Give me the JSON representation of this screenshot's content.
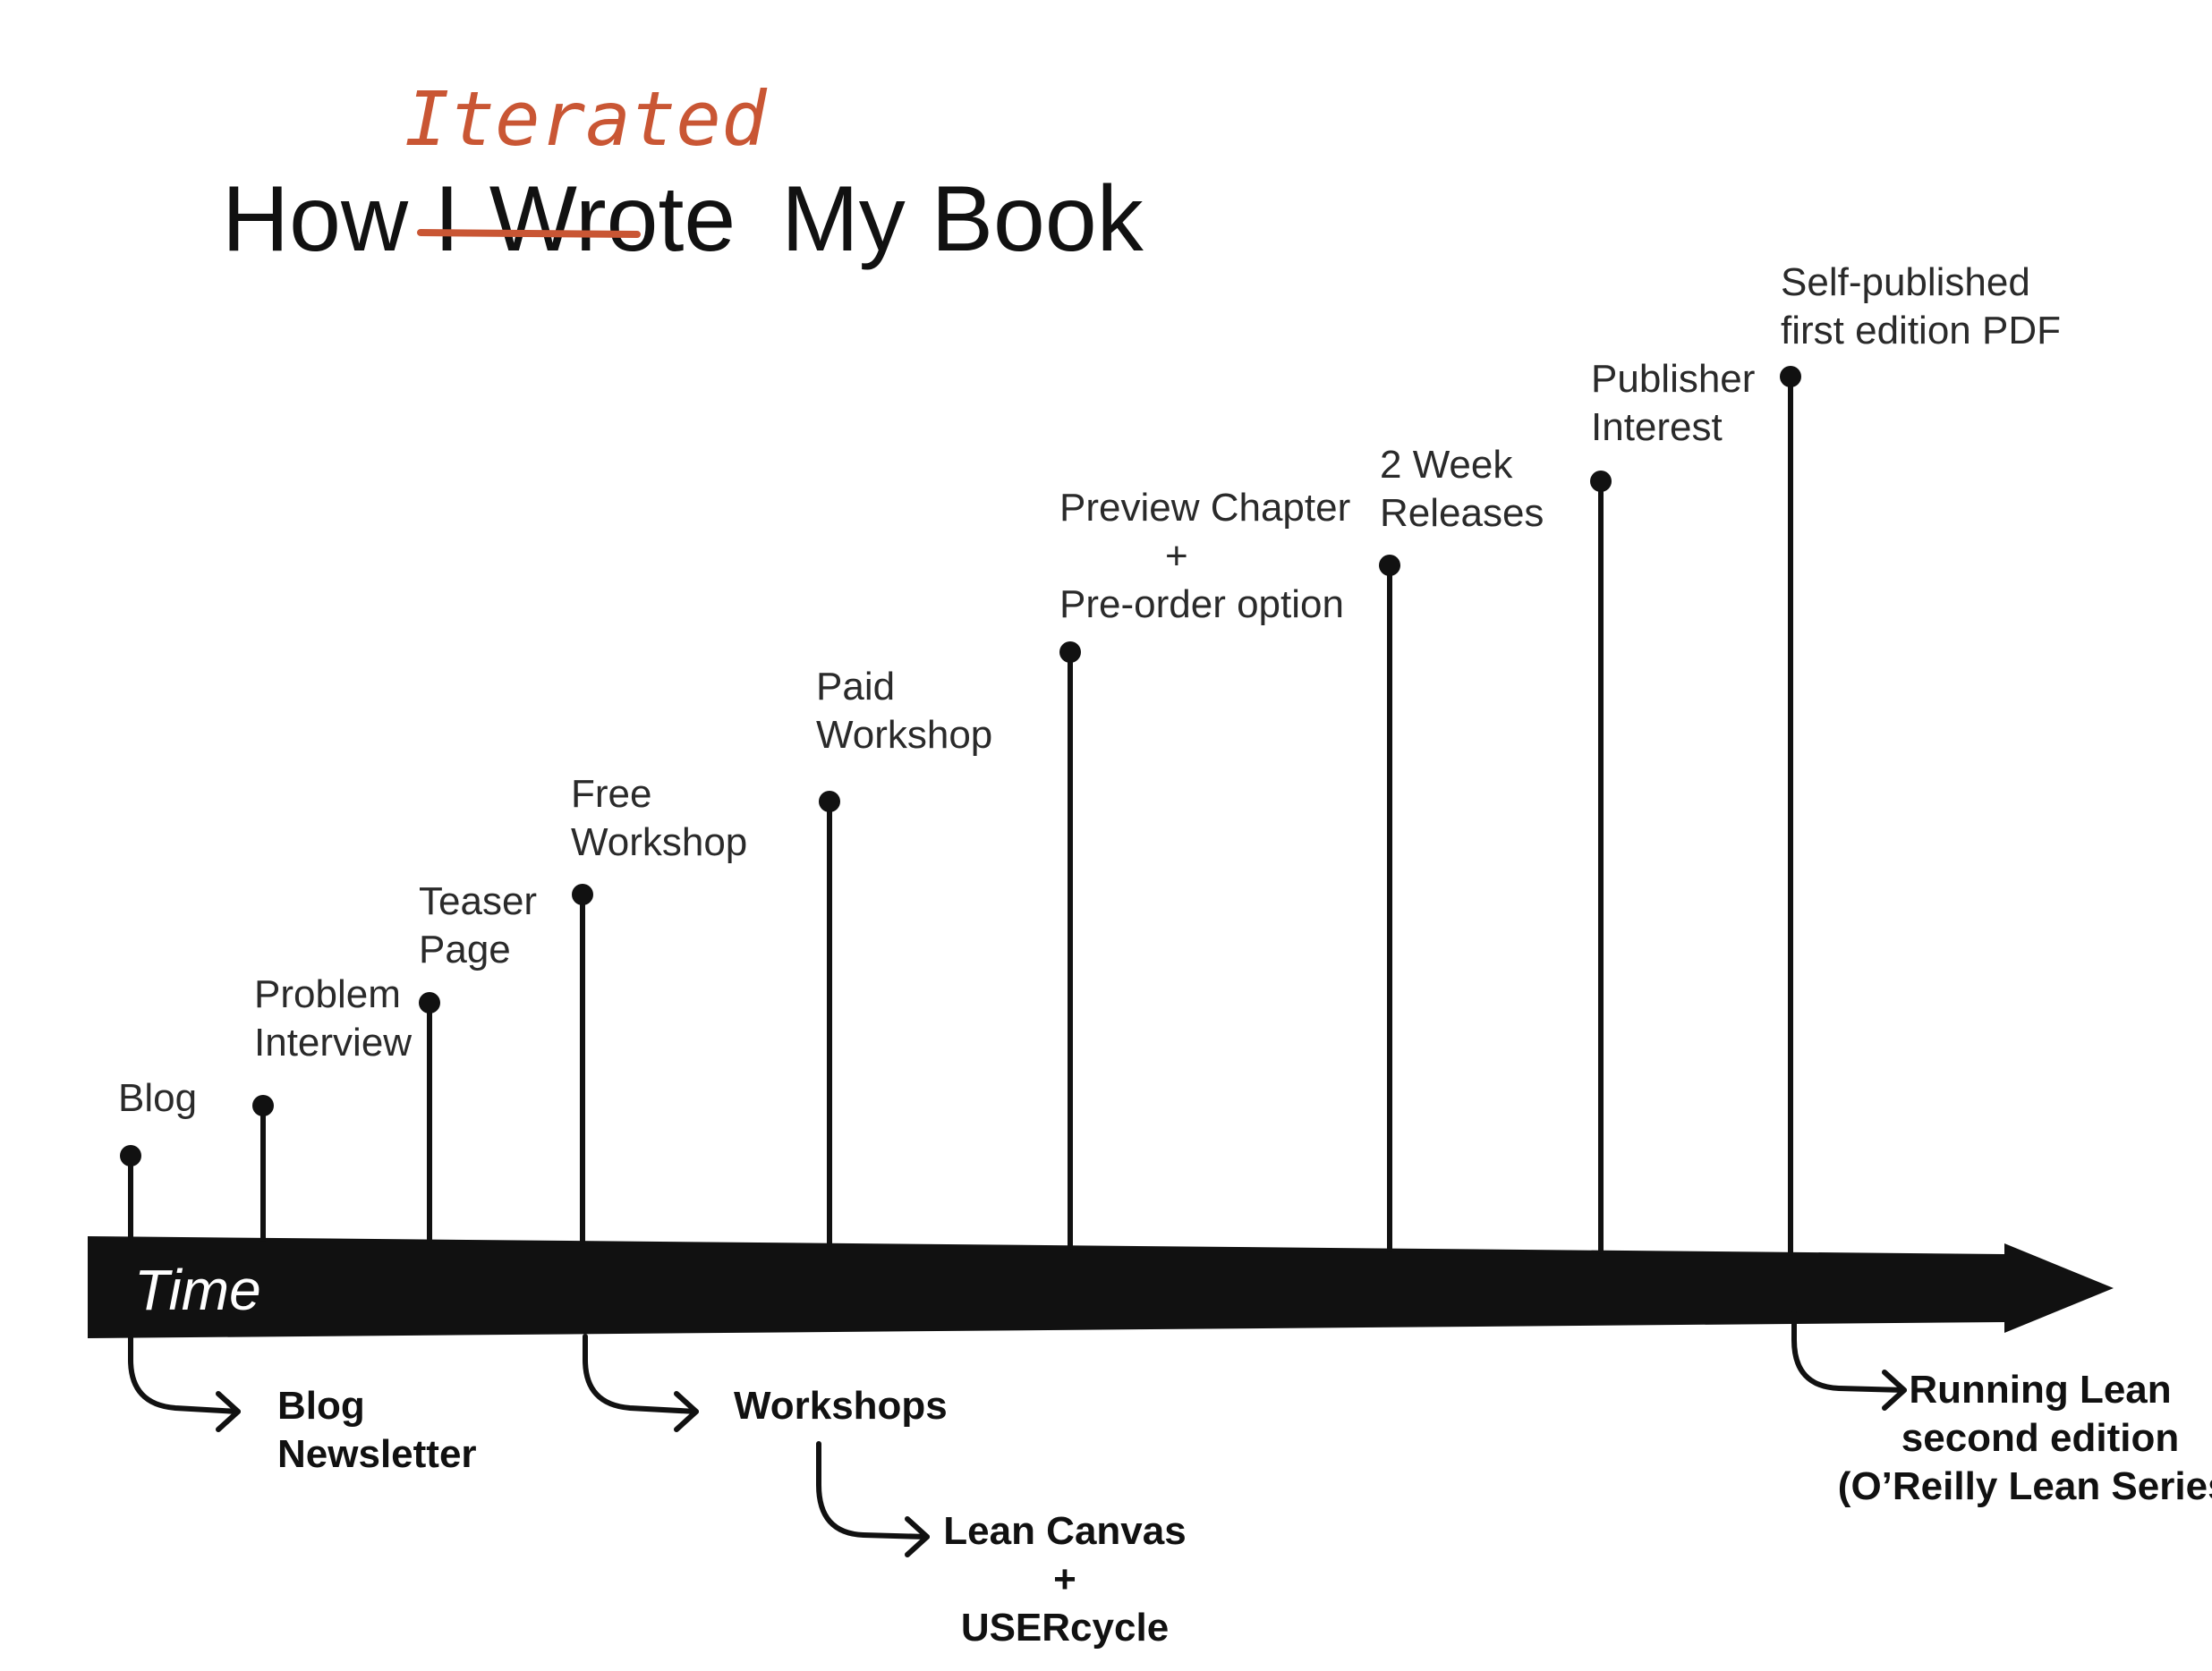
{
  "title": {
    "prefix": "How I",
    "struck_word": "Wrote",
    "replacement_word": "Iterated",
    "suffix": "My Book",
    "replacement_color": "#c95634"
  },
  "timeline": {
    "axis_label": "Time",
    "color": "#111111"
  },
  "milestones": [
    {
      "lines": [
        "Blog"
      ]
    },
    {
      "lines": [
        "Problem",
        "Interview"
      ]
    },
    {
      "lines": [
        "Teaser",
        "Page"
      ]
    },
    {
      "lines": [
        "Free",
        "Workshop"
      ]
    },
    {
      "lines": [
        "Paid",
        "Workshop"
      ]
    },
    {
      "lines": [
        "Preview Chapter",
        "+",
        "Pre-order option"
      ]
    },
    {
      "lines": [
        "2 Week",
        "Releases"
      ]
    },
    {
      "lines": [
        "Publisher",
        "Interest"
      ]
    },
    {
      "lines": [
        "Self-published",
        "first edition PDF"
      ]
    }
  ],
  "outcomes": [
    {
      "from_milestone": "Blog",
      "lines": [
        "Blog",
        "Newsletter"
      ]
    },
    {
      "from_milestone": "Free Workshop",
      "lines": [
        "Workshops"
      ]
    },
    {
      "from_outcome": "Workshops",
      "lines": [
        "Lean Canvas",
        "+",
        "USERcycle"
      ]
    },
    {
      "from_milestone": "Self-published first edition PDF",
      "lines": [
        "Running Lean",
        "second edition",
        "(O’Reilly Lean Series)"
      ]
    }
  ]
}
